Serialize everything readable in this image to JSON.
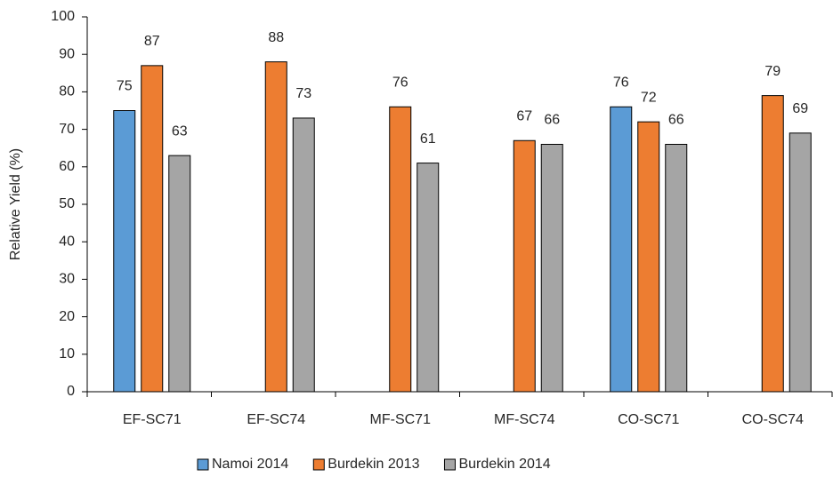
{
  "chart_data": {
    "type": "bar",
    "y_label": "Relative Yield (%)",
    "categories": [
      "EF-SC71",
      "EF-SC74",
      "MF-SC71",
      "MF-SC74",
      "CO-SC71",
      "CO-SC74"
    ],
    "series": [
      {
        "name": "Namoi 2014",
        "color": "#5b9bd5",
        "values": [
          75,
          null,
          null,
          null,
          76,
          null
        ]
      },
      {
        "name": "Burdekin 2013",
        "color": "#ed7d31",
        "values": [
          87,
          88,
          76,
          67,
          72,
          79
        ]
      },
      {
        "name": "Burdekin 2014",
        "color": "#a5a5a5",
        "values": [
          63,
          73,
          61,
          66,
          66,
          69
        ]
      }
    ],
    "ylim": [
      0,
      100
    ],
    "yticks": [
      0,
      10,
      20,
      30,
      40,
      50,
      60,
      70,
      80,
      90,
      100
    ],
    "grid": false,
    "legend": "bottom"
  }
}
